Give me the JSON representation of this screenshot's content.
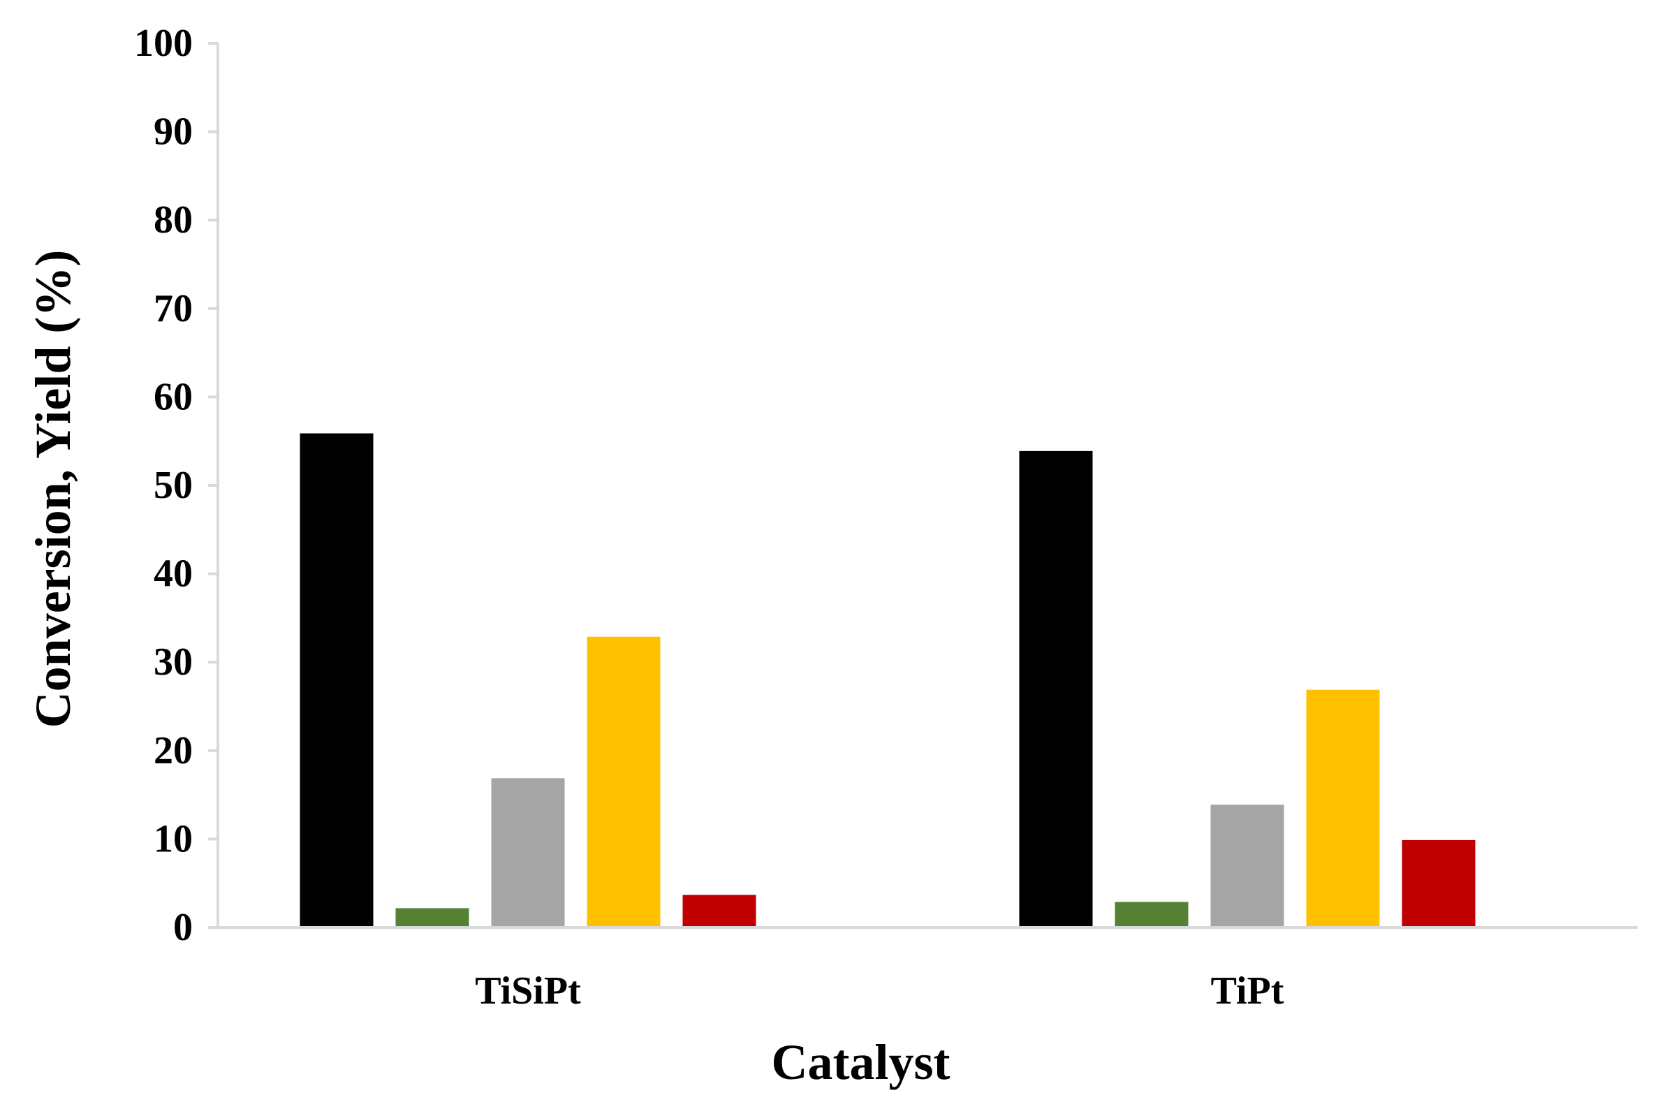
{
  "chart_data": {
    "type": "bar",
    "title": "",
    "xlabel": "Catalyst",
    "ylabel": "Conversion, Yield (%)",
    "ylim": [
      0,
      100
    ],
    "yticks": [
      0,
      10,
      20,
      30,
      40,
      50,
      60,
      70,
      80,
      90,
      100
    ],
    "grid": false,
    "legend": "none",
    "categories": [
      "TiSiPt",
      "TiPt"
    ],
    "series": [
      {
        "color": "#000000",
        "values": [
          56,
          54
        ]
      },
      {
        "color": "#548235",
        "values": [
          2.3,
          3
        ]
      },
      {
        "color": "#a5a5a5",
        "values": [
          17,
          14
        ]
      },
      {
        "color": "#ffc000",
        "values": [
          33,
          27
        ]
      },
      {
        "color": "#c00000",
        "values": [
          3.8,
          10
        ]
      }
    ]
  }
}
